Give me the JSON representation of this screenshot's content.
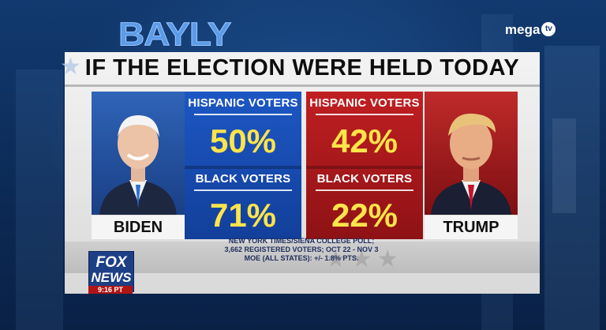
{
  "overlay": {
    "show_logo": "BAYLY",
    "channel_logo_word": "mega",
    "channel_logo_badge": "tv"
  },
  "graphic": {
    "headline": "IF THE ELECTION WERE HELD TODAY",
    "candidates": {
      "left": {
        "name": "BIDEN",
        "hispanic_label": "HISPANIC VOTERS",
        "hispanic_value": "50%",
        "black_label": "BLACK VOTERS",
        "black_value": "71%"
      },
      "right": {
        "name": "TRUMP",
        "hispanic_label": "HISPANIC VOTERS",
        "hispanic_value": "42%",
        "black_label": "BLACK VOTERS",
        "black_value": "22%"
      }
    },
    "source_lines": [
      "NEW YORK TIMES/SIENA COLLEGE POLL;",
      "3,662 REGISTERED VOTERS; OCT 22 - NOV 3",
      "MOE (ALL STATES): +/- 1.8% PTS."
    ]
  },
  "network_bug": {
    "line1": "FOX",
    "line2": "NEWS",
    "time": "9:16 PT"
  },
  "colors": {
    "dem_blue": "#1d57c4",
    "gop_red": "#c01f22",
    "value_yellow": "#ffe44a"
  }
}
